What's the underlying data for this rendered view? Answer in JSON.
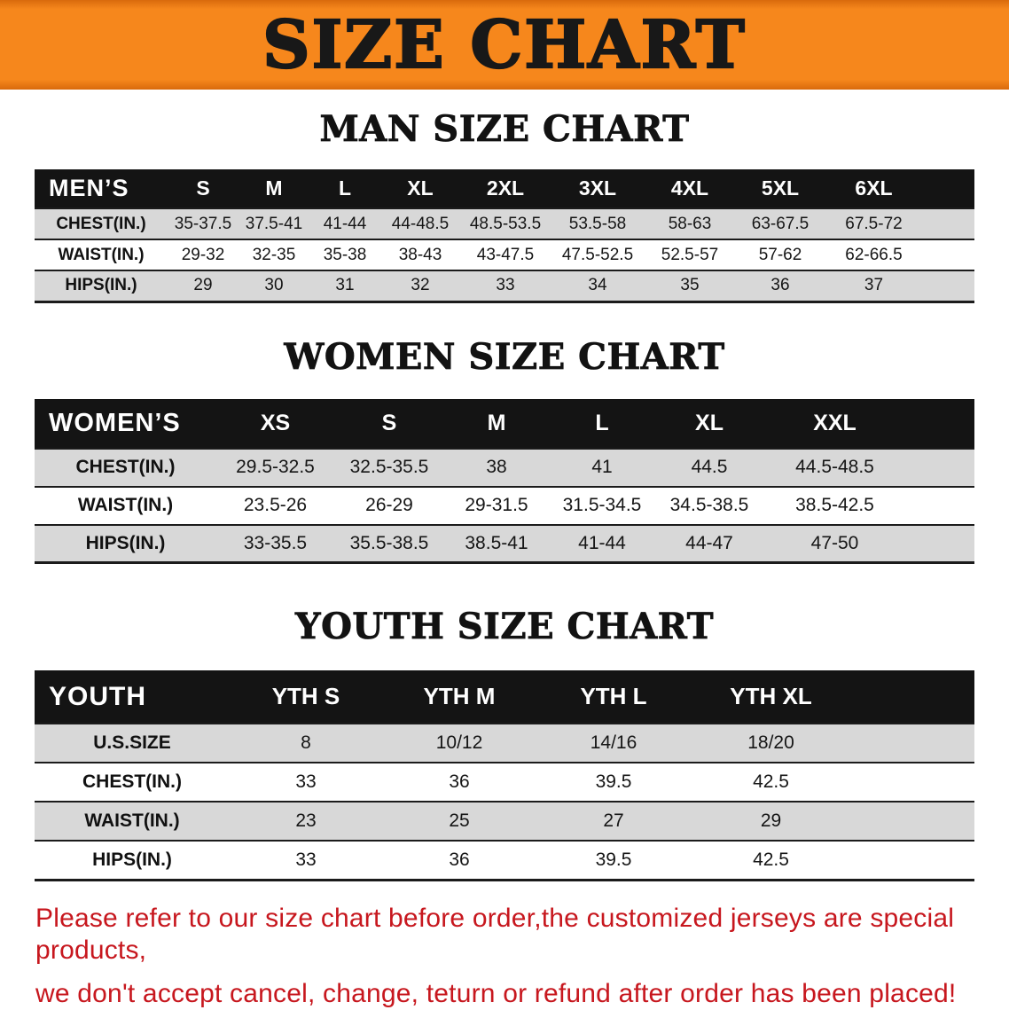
{
  "banner": {
    "title": "SIZE CHART"
  },
  "colors": {
    "banner-bg": "#f6871c",
    "banner-edge": "#d96a0c",
    "banner-text": "#181818",
    "header-bg": "#141414",
    "header-text": "#ffffff",
    "row-alt-bg": "#d8d8d8",
    "row-bg": "#ffffff",
    "footer-text": "#c7171e"
  },
  "sections": [
    {
      "heading": "MAN SIZE CHART",
      "table": {
        "header": [
          "MEN’S",
          "S",
          "M",
          "L",
          "XL",
          "2XL",
          "3XL",
          "4XL",
          "5XL",
          "6XL"
        ],
        "rows": [
          [
            "CHEST(IN.)",
            "35-37.5",
            "37.5-41",
            "41-44",
            "44-48.5",
            "48.5-53.5",
            "53.5-58",
            "58-63",
            "63-67.5",
            "67.5-72"
          ],
          [
            "WAIST(IN.)",
            "29-32",
            "32-35",
            "35-38",
            "38-43",
            "43-47.5",
            "47.5-52.5",
            "52.5-57",
            "57-62",
            "62-66.5"
          ],
          [
            "HIPS(IN.)",
            "29",
            "30",
            "31",
            "32",
            "33",
            "34",
            "35",
            "36",
            "37"
          ]
        ]
      }
    },
    {
      "heading": "WOMEN SIZE CHART",
      "table": {
        "header": [
          "WOMEN’S",
          "XS",
          "S",
          "M",
          "L",
          "XL",
          "XXL"
        ],
        "rows": [
          [
            "CHEST(IN.)",
            "29.5-32.5",
            "32.5-35.5",
            "38",
            "41",
            "44.5",
            "44.5-48.5"
          ],
          [
            "WAIST(IN.)",
            "23.5-26",
            "26-29",
            "29-31.5",
            "31.5-34.5",
            "34.5-38.5",
            "38.5-42.5"
          ],
          [
            "HIPS(IN.)",
            "33-35.5",
            "35.5-38.5",
            "38.5-41",
            "41-44",
            "44-47",
            "47-50"
          ]
        ]
      }
    },
    {
      "heading": "YOUTH SIZE CHART",
      "table": {
        "header": [
          "YOUTH",
          "YTH S",
          "YTH M",
          "YTH L",
          "YTH XL"
        ],
        "rows": [
          [
            "U.S.SIZE",
            "8",
            "10/12",
            "14/16",
            "18/20"
          ],
          [
            "CHEST(IN.)",
            "33",
            "36",
            "39.5",
            "42.5"
          ],
          [
            "WAIST(IN.)",
            "23",
            "25",
            "27",
            "29"
          ],
          [
            "HIPS(IN.)",
            "33",
            "36",
            "39.5",
            "42.5"
          ]
        ]
      }
    }
  ],
  "footer": {
    "line1": "Please refer to our size chart before order,the customized jerseys are special products,",
    "line2": "we don't accept cancel, change, teturn or refund after order has been placed!"
  }
}
